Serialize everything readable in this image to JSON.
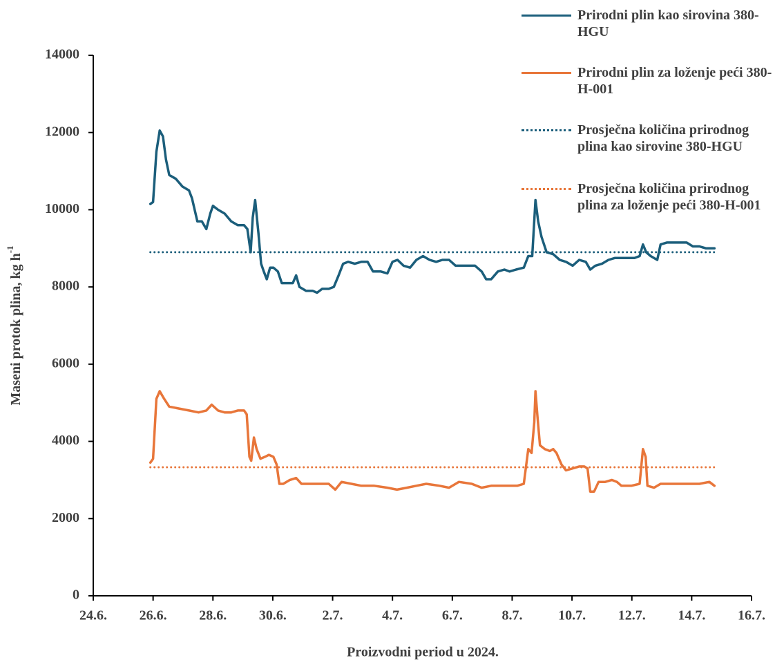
{
  "chart_data": {
    "type": "line",
    "xlabel": "Proizvodni period u 2024.",
    "ylabel": "Maseni protok plina, kg h",
    "ylabel_superscript": "-1",
    "xlim": [
      0,
      22
    ],
    "xticks": [
      {
        "value": 0,
        "label": "24.6."
      },
      {
        "value": 2,
        "label": "26.6."
      },
      {
        "value": 4,
        "label": "28.6."
      },
      {
        "value": 6,
        "label": "30.6."
      },
      {
        "value": 8,
        "label": "2.7."
      },
      {
        "value": 10,
        "label": "4.7."
      },
      {
        "value": 12,
        "label": "6.7."
      },
      {
        "value": 14,
        "label": "8.7."
      },
      {
        "value": 16,
        "label": "10.7."
      },
      {
        "value": 18,
        "label": "12.7."
      },
      {
        "value": 20,
        "label": "14.7."
      },
      {
        "value": 22,
        "label": "16.7."
      }
    ],
    "ylim": [
      0,
      14000
    ],
    "yticks": [
      0,
      2000,
      4000,
      6000,
      8000,
      10000,
      12000,
      14000
    ],
    "grid": false,
    "legend": "top-right",
    "series": [
      {
        "name": "Prirodni plin kao sirovina 380-HGU",
        "color": "#1b5e7b",
        "style": "solid",
        "x": [
          1.91,
          2.0,
          2.11,
          2.22,
          2.33,
          2.43,
          2.54,
          2.76,
          2.98,
          3.2,
          3.3,
          3.48,
          3.63,
          3.78,
          3.91,
          4.0,
          4.17,
          4.39,
          4.61,
          4.83,
          5.04,
          5.15,
          5.26,
          5.33,
          5.41,
          5.52,
          5.61,
          5.7,
          5.8,
          5.91,
          6.02,
          6.17,
          6.3,
          6.46,
          6.67,
          6.78,
          6.89,
          7.11,
          7.33,
          7.48,
          7.65,
          7.87,
          8.04,
          8.2,
          8.35,
          8.52,
          8.74,
          8.96,
          9.17,
          9.35,
          9.61,
          9.83,
          10.0,
          10.17,
          10.37,
          10.59,
          10.8,
          11.02,
          11.24,
          11.46,
          11.67,
          11.89,
          12.11,
          12.43,
          12.76,
          12.98,
          13.13,
          13.3,
          13.52,
          13.74,
          13.91,
          14.13,
          14.39,
          14.54,
          14.67,
          14.78,
          14.87,
          14.98,
          15.15,
          15.37,
          15.59,
          15.8,
          16.02,
          16.24,
          16.46,
          16.61,
          16.78,
          17.0,
          17.22,
          17.43,
          17.65,
          17.87,
          18.09,
          18.26,
          18.37,
          18.48,
          18.63,
          18.85,
          18.96,
          19.17,
          19.5,
          19.83,
          20.04,
          20.26,
          20.48,
          20.76
        ],
        "values": [
          10150,
          10200,
          11500,
          12050,
          11900,
          11300,
          10900,
          10800,
          10600,
          10500,
          10300,
          9700,
          9700,
          9500,
          9900,
          10100,
          10000,
          9900,
          9700,
          9600,
          9600,
          9500,
          8900,
          9800,
          10250,
          9400,
          8600,
          8400,
          8200,
          8500,
          8500,
          8400,
          8100,
          8100,
          8100,
          8300,
          8000,
          7900,
          7900,
          7850,
          7950,
          7950,
          8000,
          8300,
          8600,
          8650,
          8600,
          8650,
          8650,
          8400,
          8400,
          8350,
          8650,
          8700,
          8550,
          8500,
          8700,
          8800,
          8700,
          8650,
          8700,
          8700,
          8550,
          8550,
          8550,
          8400,
          8200,
          8200,
          8400,
          8450,
          8400,
          8450,
          8500,
          8800,
          8800,
          10250,
          9700,
          9300,
          8900,
          8850,
          8700,
          8650,
          8550,
          8700,
          8650,
          8450,
          8550,
          8600,
          8700,
          8750,
          8750,
          8750,
          8750,
          8800,
          9100,
          8900,
          8800,
          8700,
          9100,
          9150,
          9150,
          9150,
          9050,
          9050,
          9000,
          9000
        ]
      },
      {
        "name": "Prirodni plin za loženje peći 380-H-001",
        "color": "#e8763a",
        "style": "solid",
        "x": [
          1.91,
          2.0,
          2.11,
          2.22,
          2.37,
          2.54,
          2.87,
          3.2,
          3.52,
          3.78,
          3.96,
          4.17,
          4.39,
          4.61,
          4.83,
          5.04,
          5.13,
          5.22,
          5.28,
          5.37,
          5.46,
          5.59,
          5.74,
          5.87,
          6.02,
          6.13,
          6.22,
          6.35,
          6.57,
          6.78,
          6.96,
          7.22,
          7.54,
          7.87,
          8.09,
          8.3,
          8.63,
          8.96,
          9.39,
          9.83,
          10.15,
          10.48,
          10.8,
          11.13,
          11.57,
          11.89,
          12.22,
          12.65,
          12.98,
          13.3,
          13.74,
          14.17,
          14.39,
          14.54,
          14.65,
          14.74,
          14.78,
          14.85,
          14.93,
          15.09,
          15.26,
          15.37,
          15.48,
          15.65,
          15.8,
          16.02,
          16.24,
          16.41,
          16.52,
          16.61,
          16.74,
          16.89,
          17.11,
          17.33,
          17.5,
          17.65,
          17.98,
          18.26,
          18.37,
          18.46,
          18.52,
          18.74,
          18.96,
          19.28,
          19.61,
          19.93,
          20.26,
          20.59,
          20.76
        ],
        "values": [
          3450,
          3550,
          5100,
          5300,
          5100,
          4900,
          4850,
          4800,
          4750,
          4800,
          4950,
          4800,
          4750,
          4750,
          4800,
          4800,
          4700,
          3600,
          3500,
          4100,
          3800,
          3550,
          3600,
          3650,
          3600,
          3400,
          2900,
          2900,
          3000,
          3050,
          2900,
          2900,
          2900,
          2900,
          2750,
          2950,
          2900,
          2850,
          2850,
          2800,
          2750,
          2800,
          2850,
          2900,
          2850,
          2800,
          2950,
          2900,
          2800,
          2850,
          2850,
          2850,
          2900,
          3800,
          3700,
          4500,
          5300,
          4600,
          3900,
          3800,
          3750,
          3800,
          3700,
          3400,
          3250,
          3300,
          3350,
          3350,
          3300,
          2700,
          2700,
          2950,
          2950,
          3000,
          2950,
          2850,
          2850,
          2900,
          3800,
          3600,
          2850,
          2800,
          2900,
          2900,
          2900,
          2900,
          2900,
          2950,
          2850
        ]
      },
      {
        "name": "Prosječna količina prirodnog plina kao sirovine 380-HGU",
        "color": "#1b5e7b",
        "style": "dotted",
        "x": [
          1.91,
          20.76
        ],
        "values": [
          8900,
          8900
        ]
      },
      {
        "name": "Prosječna količina prirodnog plina za loženje peći 380-H-001",
        "color": "#e8763a",
        "style": "dotted",
        "x": [
          1.91,
          20.76
        ],
        "values": [
          3330,
          3330
        ]
      }
    ]
  }
}
